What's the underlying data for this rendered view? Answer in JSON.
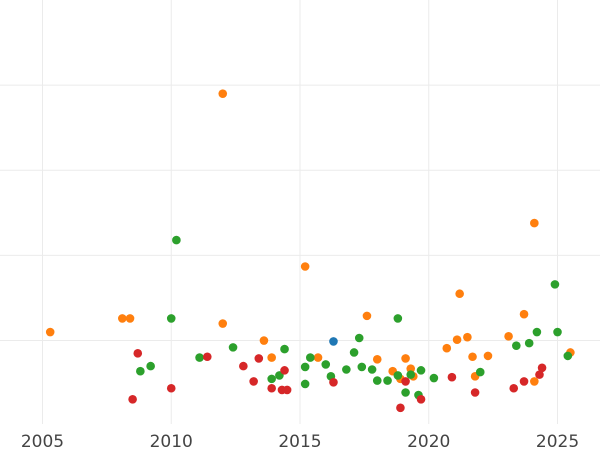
{
  "chart_data": {
    "type": "scatter",
    "title": "",
    "xlabel": "",
    "ylabel": "",
    "xlim": [
      2003.35,
      2026.65
    ],
    "ylim": [
      -0.98,
      4.0
    ],
    "x_ticks": [
      2005,
      2010,
      2015,
      2020,
      2025
    ],
    "x_tick_labels": [
      "2005",
      "2010",
      "2015",
      "2020",
      "2025"
    ],
    "y_gridlines": [
      0,
      1,
      2,
      3
    ],
    "grid": true,
    "legend": "none",
    "colors": {
      "orange": "#ff7f0e",
      "green": "#2ca02c",
      "red": "#d62728",
      "blue": "#1f77b4"
    },
    "series": [
      {
        "color": "orange",
        "points": [
          [
            2005.3,
            0.1
          ],
          [
            2008.1,
            0.26
          ],
          [
            2008.4,
            0.26
          ],
          [
            2012.0,
            2.9
          ],
          [
            2012.0,
            0.2
          ],
          [
            2013.6,
            0.0
          ],
          [
            2013.9,
            -0.2
          ],
          [
            2015.2,
            0.87
          ],
          [
            2015.7,
            -0.2
          ],
          [
            2017.6,
            0.29
          ],
          [
            2018.0,
            -0.22
          ],
          [
            2018.6,
            -0.36
          ],
          [
            2018.9,
            -0.45
          ],
          [
            2019.1,
            -0.21
          ],
          [
            2019.3,
            -0.33
          ],
          [
            2019.4,
            -0.42
          ],
          [
            2020.7,
            -0.09
          ],
          [
            2021.1,
            0.01
          ],
          [
            2021.2,
            0.55
          ],
          [
            2021.5,
            0.04
          ],
          [
            2021.7,
            -0.19
          ],
          [
            2021.8,
            -0.42
          ],
          [
            2022.3,
            -0.18
          ],
          [
            2023.1,
            0.05
          ],
          [
            2023.7,
            0.31
          ],
          [
            2024.1,
            1.38
          ],
          [
            2024.1,
            -0.48
          ],
          [
            2025.5,
            -0.14
          ]
        ]
      },
      {
        "color": "green",
        "points": [
          [
            2008.8,
            -0.36
          ],
          [
            2009.2,
            -0.3
          ],
          [
            2010.0,
            0.26
          ],
          [
            2010.2,
            1.18
          ],
          [
            2011.1,
            -0.2
          ],
          [
            2012.4,
            -0.08
          ],
          [
            2013.9,
            -0.45
          ],
          [
            2014.2,
            -0.41
          ],
          [
            2014.4,
            -0.1
          ],
          [
            2015.2,
            -0.31
          ],
          [
            2015.2,
            -0.51
          ],
          [
            2015.4,
            -0.2
          ],
          [
            2016.0,
            -0.28
          ],
          [
            2016.2,
            -0.42
          ],
          [
            2016.8,
            -0.34
          ],
          [
            2017.1,
            -0.14
          ],
          [
            2017.3,
            0.03
          ],
          [
            2017.4,
            -0.31
          ],
          [
            2017.8,
            -0.34
          ],
          [
            2018.0,
            -0.47
          ],
          [
            2018.4,
            -0.47
          ],
          [
            2018.8,
            0.26
          ],
          [
            2018.8,
            -0.41
          ],
          [
            2019.1,
            -0.61
          ],
          [
            2019.3,
            -0.4
          ],
          [
            2019.6,
            -0.64
          ],
          [
            2019.7,
            -0.35
          ],
          [
            2020.2,
            -0.44
          ],
          [
            2022.0,
            -0.37
          ],
          [
            2023.4,
            -0.06
          ],
          [
            2023.9,
            -0.03
          ],
          [
            2024.2,
            0.1
          ],
          [
            2024.9,
            0.66
          ],
          [
            2025.0,
            0.1
          ],
          [
            2025.4,
            -0.18
          ]
        ]
      },
      {
        "color": "red",
        "points": [
          [
            2008.5,
            -0.69
          ],
          [
            2008.7,
            -0.15
          ],
          [
            2010.0,
            -0.56
          ],
          [
            2011.4,
            -0.19
          ],
          [
            2012.8,
            -0.3
          ],
          [
            2013.2,
            -0.48
          ],
          [
            2013.4,
            -0.21
          ],
          [
            2013.9,
            -0.56
          ],
          [
            2014.3,
            -0.58
          ],
          [
            2014.4,
            -0.35
          ],
          [
            2014.5,
            -0.58
          ],
          [
            2016.3,
            -0.49
          ],
          [
            2018.9,
            -0.79
          ],
          [
            2019.1,
            -0.48
          ],
          [
            2019.7,
            -0.69
          ],
          [
            2020.9,
            -0.43
          ],
          [
            2021.8,
            -0.61
          ],
          [
            2023.3,
            -0.56
          ],
          [
            2023.7,
            -0.48
          ],
          [
            2024.3,
            -0.4
          ],
          [
            2024.4,
            -0.32
          ]
        ]
      },
      {
        "color": "blue",
        "points": [
          [
            2016.3,
            -0.01
          ]
        ]
      }
    ]
  }
}
